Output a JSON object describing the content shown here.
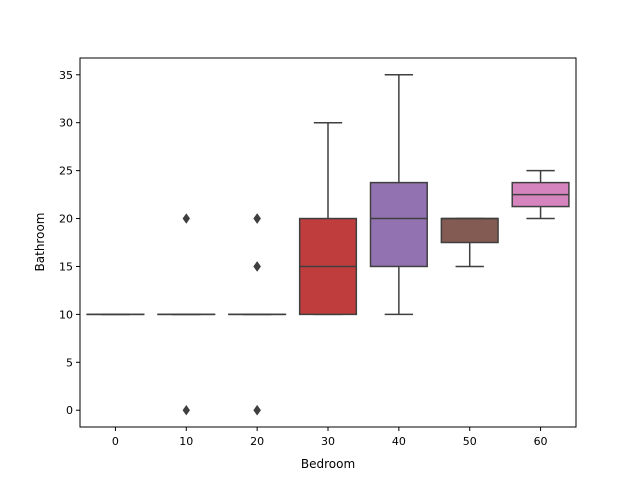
{
  "chart_data": {
    "type": "box",
    "title": "",
    "xlabel": "Bedroom",
    "ylabel": "Bathroom",
    "ylim": [
      -1.75,
      36.75
    ],
    "yticks": [
      0,
      5,
      10,
      15,
      20,
      25,
      30,
      35
    ],
    "ytick_labels": [
      "0",
      "5",
      "10",
      "15",
      "20",
      "25",
      "30",
      "35"
    ],
    "grid": false,
    "legend": "none",
    "categories": [
      "0",
      "10",
      "20",
      "30",
      "40",
      "50",
      "60"
    ],
    "boxes": [
      {
        "category": "0",
        "min": 10,
        "q1": 10,
        "median": 10,
        "q3": 10,
        "max": 10,
        "outliers": [],
        "color": "#3a75af"
      },
      {
        "category": "10",
        "min": 10,
        "q1": 10,
        "median": 10,
        "q3": 10,
        "max": 10,
        "outliers": [
          0,
          20
        ],
        "color": "#e1812c"
      },
      {
        "category": "20",
        "min": 10,
        "q1": 10,
        "median": 10,
        "q3": 10,
        "max": 10,
        "outliers": [
          0,
          0,
          15,
          15,
          20,
          20
        ],
        "color": "#3a923a"
      },
      {
        "category": "30",
        "min": 10,
        "q1": 10,
        "median": 15,
        "q3": 20,
        "max": 30,
        "outliers": [],
        "color": "#c03d3e"
      },
      {
        "category": "40",
        "min": 10,
        "q1": 15,
        "median": 20,
        "q3": 23.75,
        "max": 35,
        "outliers": [],
        "color": "#9372b2"
      },
      {
        "category": "50",
        "min": 15,
        "q1": 17.5,
        "median": 20,
        "q3": 20,
        "max": 20,
        "outliers": [],
        "color": "#845b53"
      },
      {
        "category": "60",
        "min": 20,
        "q1": 21.25,
        "median": 22.5,
        "q3": 23.75,
        "max": 25,
        "outliers": [],
        "color": "#d684bd"
      }
    ]
  }
}
